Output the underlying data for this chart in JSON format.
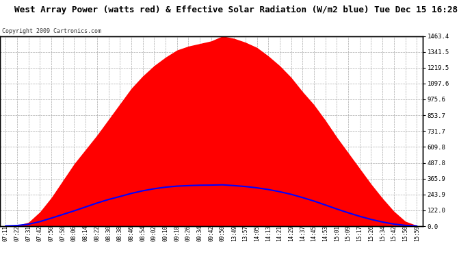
{
  "title": "West Array Power (watts red) & Effective Solar Radiation (W/m2 blue) Tue Dec 15 16:28",
  "copyright": "Copyright 2009 Cartronics.com",
  "background_color": "#ffffff",
  "plot_bg_color": "#ffffff",
  "yticks": [
    0.0,
    122.0,
    243.9,
    365.9,
    487.8,
    609.8,
    731.7,
    853.7,
    975.6,
    1097.6,
    1219.5,
    1341.5,
    1463.4
  ],
  "ymax": 1463.4,
  "x_labels": [
    "07:11",
    "07:22",
    "07:31",
    "07:42",
    "07:50",
    "07:58",
    "08:06",
    "08:14",
    "08:22",
    "08:30",
    "08:38",
    "08:46",
    "08:54",
    "09:02",
    "09:10",
    "09:18",
    "09:26",
    "09:34",
    "09:42",
    "09:50",
    "13:49",
    "13:57",
    "14:05",
    "14:13",
    "14:21",
    "14:29",
    "14:37",
    "14:45",
    "14:53",
    "15:01",
    "15:09",
    "15:17",
    "15:26",
    "15:34",
    "15:42",
    "15:50",
    "15:59"
  ],
  "power_values": [
    2,
    5,
    30,
    110,
    220,
    350,
    480,
    590,
    700,
    820,
    940,
    1060,
    1155,
    1235,
    1300,
    1355,
    1385,
    1405,
    1425,
    1463,
    1445,
    1415,
    1375,
    1310,
    1235,
    1145,
    1035,
    935,
    815,
    685,
    565,
    445,
    325,
    215,
    115,
    38,
    5
  ],
  "solar_values": [
    2,
    5,
    15,
    35,
    62,
    90,
    118,
    148,
    178,
    205,
    228,
    252,
    272,
    288,
    300,
    308,
    312,
    315,
    316,
    318,
    312,
    305,
    295,
    282,
    265,
    245,
    220,
    193,
    163,
    132,
    103,
    76,
    52,
    32,
    16,
    6,
    2
  ],
  "fill_color": "#ff0000",
  "line_color": "#0000ff",
  "grid_color": "#aaaaaa",
  "title_color": "#000000",
  "copyright_color": "#333333",
  "tick_color": "#000000",
  "border_color": "#000000",
  "title_fontsize": 9.2,
  "copyright_fontsize": 6.0,
  "tick_fontsize": 6.5,
  "xtick_fontsize": 5.5
}
